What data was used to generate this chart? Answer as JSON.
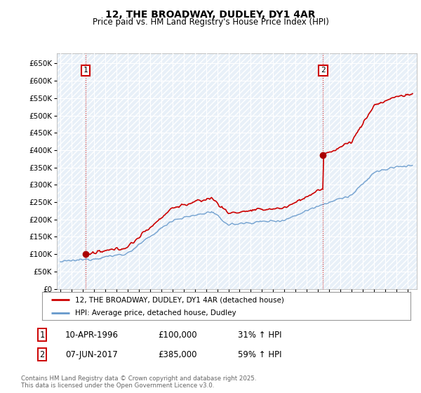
{
  "title": "12, THE BROADWAY, DUDLEY, DY1 4AR",
  "subtitle": "Price paid vs. HM Land Registry's House Price Index (HPI)",
  "legend_line1": "12, THE BROADWAY, DUDLEY, DY1 4AR (detached house)",
  "legend_line2": "HPI: Average price, detached house, Dudley",
  "annotation1_date": "10-APR-1996",
  "annotation1_price": "£100,000",
  "annotation1_hpi": "31% ↑ HPI",
  "annotation2_date": "07-JUN-2017",
  "annotation2_price": "£385,000",
  "annotation2_hpi": "59% ↑ HPI",
  "footer": "Contains HM Land Registry data © Crown copyright and database right 2025.\nThis data is licensed under the Open Government Licence v3.0.",
  "ylim": [
    0,
    680000
  ],
  "yticks": [
    0,
    50000,
    100000,
    150000,
    200000,
    250000,
    300000,
    350000,
    400000,
    450000,
    500000,
    550000,
    600000,
    650000
  ],
  "purchase1_year": 1996.27,
  "purchase1_value": 100000,
  "purchase2_year": 2017.44,
  "purchase2_value": 385000,
  "line_color_red": "#cc0000",
  "line_color_blue": "#6699cc",
  "dot_color_red": "#aa0000",
  "bg_color": "#ffffff",
  "plot_bg_color": "#e8f0f8",
  "grid_color": "#ffffff",
  "annotation_box_color": "#cc0000",
  "xmin": 1993.7,
  "xmax": 2025.8
}
